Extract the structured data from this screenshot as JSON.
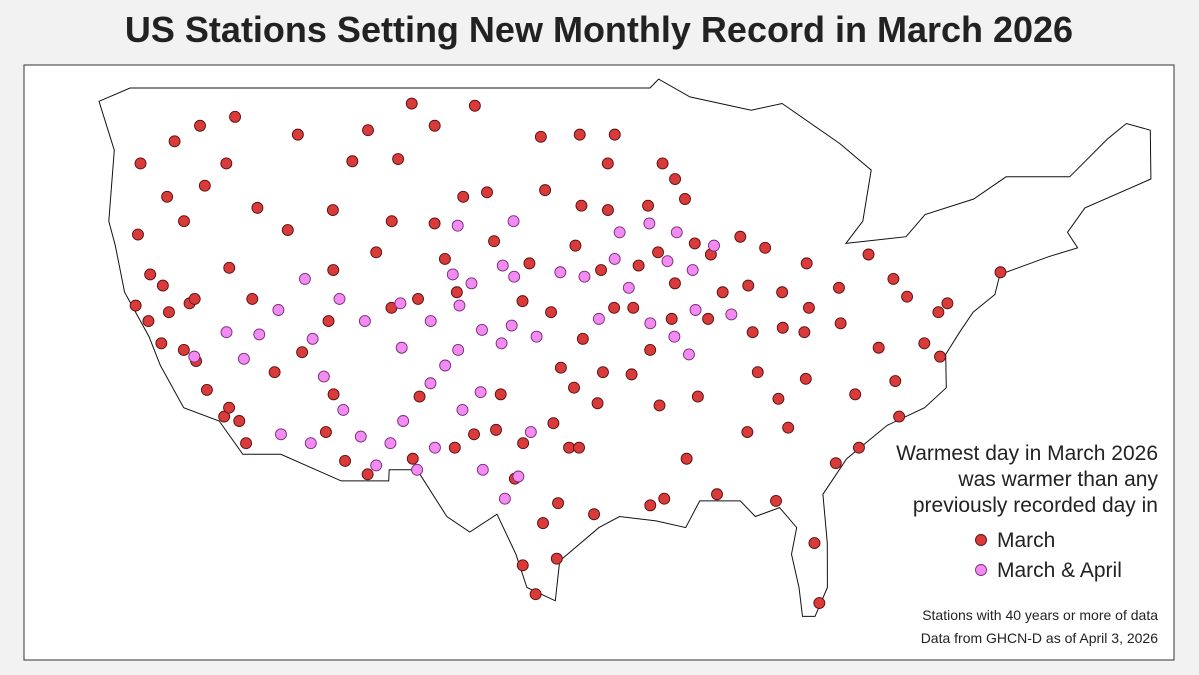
{
  "chart_data": {
    "type": "scatter",
    "title": "US Stations Setting New Monthly Record in March 2026",
    "legend_title_lines": [
      "Warmest day in March 2026",
      "was warmer than any",
      "previously recorded day in"
    ],
    "notes": [
      "Stations with 40 years or more of data",
      "Data from GHCN-D as of April 3, 2026"
    ],
    "series": [
      {
        "name": "March",
        "color": "#d93a3a",
        "points": [
          [
            -122.5,
            38.5
          ],
          [
            -121.8,
            37.5
          ],
          [
            -121.3,
            38.9
          ],
          [
            -120.5,
            37.2
          ],
          [
            -119.8,
            36.7
          ],
          [
            -119.2,
            35.4
          ],
          [
            -118.2,
            34.2
          ],
          [
            -117.3,
            34.0
          ],
          [
            -116.9,
            33.0
          ],
          [
            -117.9,
            34.6
          ],
          [
            -120.1,
            39.3
          ],
          [
            -121.6,
            40.1
          ],
          [
            -122.3,
            40.6
          ],
          [
            -123.2,
            39.2
          ],
          [
            -122.9,
            42.4
          ],
          [
            -121.2,
            44.1
          ],
          [
            -120.3,
            43.0
          ],
          [
            -119.1,
            44.6
          ],
          [
            -117.9,
            45.6
          ],
          [
            -122.6,
            45.6
          ],
          [
            -120.7,
            46.6
          ],
          [
            -119.3,
            47.3
          ],
          [
            -117.4,
            47.7
          ],
          [
            -116.2,
            43.6
          ],
          [
            -114.5,
            42.6
          ],
          [
            -112.0,
            43.5
          ],
          [
            -114.0,
            46.9
          ],
          [
            -111.0,
            45.7
          ],
          [
            -108.5,
            45.8
          ],
          [
            -106.6,
            47.3
          ],
          [
            -104.5,
            48.2
          ],
          [
            -107.9,
            48.3
          ],
          [
            -110.2,
            47.1
          ],
          [
            -104.8,
            44.1
          ],
          [
            -106.3,
            42.9
          ],
          [
            -108.7,
            43.0
          ],
          [
            -109.5,
            41.6
          ],
          [
            -105.6,
            41.3
          ],
          [
            -104.8,
            39.8
          ],
          [
            -107.0,
            39.5
          ],
          [
            -108.5,
            39.1
          ],
          [
            -111.9,
            40.8
          ],
          [
            -112.1,
            38.5
          ],
          [
            -113.6,
            37.1
          ],
          [
            -115.2,
            36.2
          ],
          [
            -116.5,
            39.5
          ],
          [
            -117.8,
            40.9
          ],
          [
            -119.8,
            39.5
          ],
          [
            -112.1,
            33.5
          ],
          [
            -110.9,
            32.2
          ],
          [
            -111.7,
            35.2
          ],
          [
            -109.5,
            31.6
          ],
          [
            -106.6,
            35.1
          ],
          [
            -106.8,
            32.3
          ],
          [
            -104.3,
            32.8
          ],
          [
            -103.2,
            33.4
          ],
          [
            -101.9,
            33.6
          ],
          [
            -100.5,
            31.4
          ],
          [
            -97.7,
            30.3
          ],
          [
            -98.5,
            29.4
          ],
          [
            -97.4,
            32.8
          ],
          [
            -96.8,
            32.8
          ],
          [
            -95.4,
            29.8
          ],
          [
            -97.4,
            27.8
          ],
          [
            -99.5,
            27.5
          ],
          [
            -101.8,
            35.2
          ],
          [
            -100.2,
            33.0
          ],
          [
            -98.5,
            33.9
          ],
          [
            -97.5,
            35.5
          ],
          [
            -95.9,
            36.2
          ],
          [
            -96.0,
            34.8
          ],
          [
            -98.4,
            36.4
          ],
          [
            -97.3,
            37.7
          ],
          [
            -99.3,
            38.9
          ],
          [
            -101.0,
            39.4
          ],
          [
            -95.7,
            39.1
          ],
          [
            -96.7,
            40.8
          ],
          [
            -98.3,
            41.9
          ],
          [
            -100.8,
            41.1
          ],
          [
            -102.9,
            42.1
          ],
          [
            -103.5,
            44.3
          ],
          [
            -100.3,
            44.4
          ],
          [
            -98.2,
            43.7
          ],
          [
            -96.7,
            43.5
          ],
          [
            -97.0,
            45.6
          ],
          [
            -100.8,
            46.8
          ],
          [
            -98.7,
            46.9
          ],
          [
            -96.8,
            46.9
          ],
          [
            -94.0,
            45.6
          ],
          [
            -93.2,
            44.9
          ],
          [
            -92.5,
            44.0
          ],
          [
            -94.5,
            43.7
          ],
          [
            -93.6,
            41.6
          ],
          [
            -91.6,
            42.0
          ],
          [
            -90.6,
            41.5
          ],
          [
            -94.6,
            41.0
          ],
          [
            -92.4,
            40.2
          ],
          [
            -94.6,
            39.1
          ],
          [
            -92.3,
            38.6
          ],
          [
            -90.2,
            38.6
          ],
          [
            -93.3,
            37.2
          ],
          [
            -89.6,
            39.8
          ],
          [
            -88.2,
            40.1
          ],
          [
            -87.6,
            41.8
          ],
          [
            -89.1,
            42.3
          ],
          [
            -86.2,
            39.8
          ],
          [
            -85.1,
            41.1
          ],
          [
            -87.5,
            38.0
          ],
          [
            -84.5,
            39.1
          ],
          [
            -83.0,
            40.0
          ],
          [
            -81.7,
            41.5
          ],
          [
            -82.5,
            38.4
          ],
          [
            -80.0,
            40.4
          ],
          [
            -79.0,
            39.6
          ],
          [
            -77.0,
            38.9
          ],
          [
            -76.6,
            39.3
          ],
          [
            -85.8,
            38.2
          ],
          [
            -84.5,
            38.0
          ],
          [
            -86.8,
            36.2
          ],
          [
            -85.3,
            35.0
          ],
          [
            -83.9,
            35.9
          ],
          [
            -80.8,
            35.2
          ],
          [
            -78.6,
            35.8
          ],
          [
            -77.4,
            37.5
          ],
          [
            -80.0,
            37.3
          ],
          [
            -76.3,
            36.9
          ],
          [
            -77.9,
            34.2
          ],
          [
            -79.9,
            32.8
          ],
          [
            -81.1,
            32.1
          ],
          [
            -84.4,
            33.7
          ],
          [
            -86.8,
            33.5
          ],
          [
            -88.0,
            30.7
          ],
          [
            -90.2,
            32.3
          ],
          [
            -90.1,
            35.1
          ],
          [
            -92.3,
            34.7
          ],
          [
            -94.2,
            36.1
          ],
          [
            -91.2,
            30.5
          ],
          [
            -92.0,
            30.2
          ],
          [
            -84.3,
            30.4
          ],
          [
            -81.4,
            28.5
          ],
          [
            -80.3,
            25.8
          ],
          [
            -74.0,
            40.7
          ],
          [
            -98.5,
            26.2
          ]
        ]
      },
      {
        "name": "March & April",
        "color": "#f28cf2",
        "points": [
          [
            -113.0,
            37.7
          ],
          [
            -112.3,
            36.0
          ],
          [
            -111.1,
            34.5
          ],
          [
            -110.0,
            33.3
          ],
          [
            -109.0,
            32.0
          ],
          [
            -108.2,
            33.0
          ],
          [
            -107.5,
            34.0
          ],
          [
            -106.0,
            35.7
          ],
          [
            -105.2,
            36.5
          ],
          [
            -104.5,
            37.2
          ],
          [
            -103.0,
            35.3
          ],
          [
            -104.0,
            34.5
          ],
          [
            -105.5,
            32.8
          ],
          [
            -106.2,
            38.5
          ],
          [
            -107.8,
            37.3
          ],
          [
            -105.1,
            40.6
          ],
          [
            -104.0,
            40.2
          ],
          [
            -103.2,
            38.1
          ],
          [
            -102.0,
            37.5
          ],
          [
            -101.5,
            38.3
          ],
          [
            -100.0,
            37.8
          ],
          [
            -99.0,
            40.7
          ],
          [
            -101.6,
            40.5
          ],
          [
            -102.3,
            41.0
          ],
          [
            -97.6,
            40.5
          ],
          [
            -96.0,
            41.3
          ],
          [
            -95.0,
            40.0
          ],
          [
            -93.0,
            41.2
          ],
          [
            -91.5,
            40.8
          ],
          [
            -91.0,
            39.0
          ],
          [
            -92.0,
            37.8
          ],
          [
            -91.0,
            37.0
          ],
          [
            -93.5,
            38.4
          ],
          [
            -90.5,
            41.9
          ],
          [
            -92.7,
            42.5
          ],
          [
            -95.9,
            42.5
          ],
          [
            -94.3,
            42.9
          ],
          [
            -118.0,
            38.0
          ],
          [
            -117.0,
            36.8
          ],
          [
            -116.1,
            37.9
          ],
          [
            -115.0,
            39.0
          ],
          [
            -114.8,
            33.4
          ],
          [
            -113.0,
            33.0
          ],
          [
            -111.5,
            39.5
          ],
          [
            -110.0,
            38.5
          ],
          [
            -108.0,
            39.3
          ],
          [
            -100.3,
            31.5
          ],
          [
            -102.5,
            31.8
          ],
          [
            -99.8,
            33.5
          ],
          [
            -101.0,
            30.5
          ],
          [
            -119.9,
            36.9
          ],
          [
            -96.5,
            38.6
          ],
          [
            -104.6,
            39.2
          ],
          [
            -113.5,
            40.4
          ],
          [
            -105.0,
            42.8
          ],
          [
            -101.9,
            43.0
          ],
          [
            -88.9,
            38.8
          ],
          [
            -106.5,
            31.8
          ]
        ]
      }
    ]
  }
}
